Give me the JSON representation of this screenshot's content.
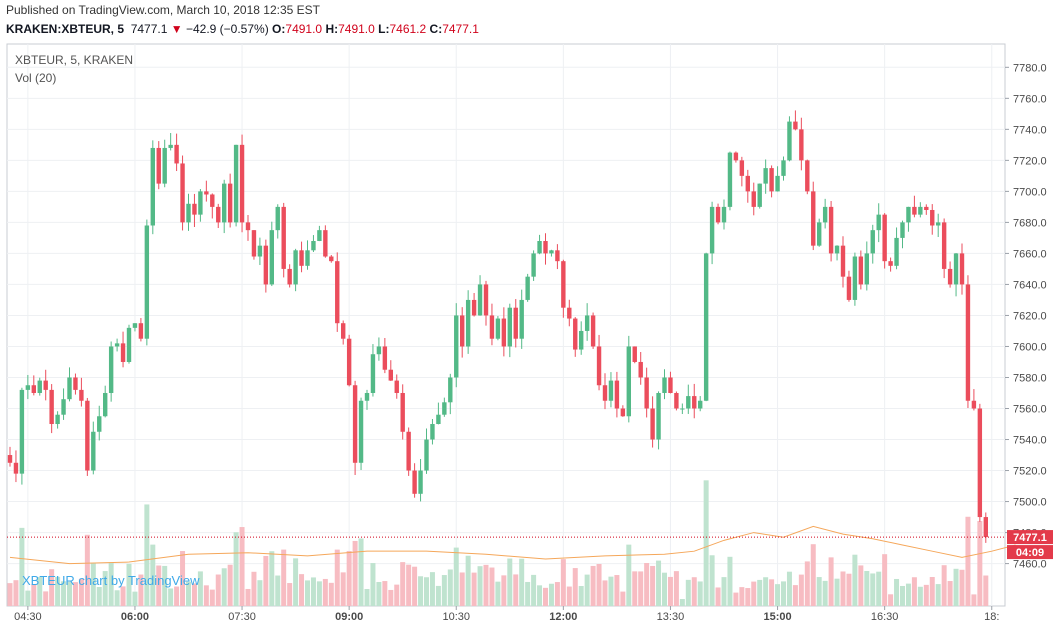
{
  "header": {
    "published": "Published on TradingView.com, March 10, 2018 12:35 EST",
    "symbol": "KRAKEN:XBTEUR, 5",
    "last": "7477.1",
    "arrow": "▼",
    "change": "−42.9 (−0.57%)",
    "o_label": "O:",
    "o": "7491.0",
    "h_label": "H:",
    "h": "7491.0",
    "l_label": "L:",
    "l": "7461.2",
    "c_label": "C:",
    "c": "7477.1"
  },
  "legend": {
    "symbol": "XBTEUR, 5, KRAKEN",
    "volume": "Vol (20)"
  },
  "watermark": "XBTEUR chart by TradingView",
  "colors": {
    "up": "#53b987",
    "down": "#eb4d5c",
    "volUp": "#bfe3cf",
    "volDown": "#f7bcc2",
    "ma": "#f5a75a",
    "grid": "#eef0f3"
  },
  "chart_data": {
    "type": "candlestick",
    "interval": "5",
    "xlabels": [
      "04:30",
      "06:00",
      "07:30",
      "09:00",
      "10:30",
      "12:00",
      "13:30",
      "15:00",
      "16:30",
      "18:"
    ],
    "xlabel_index": [
      3,
      21,
      39,
      57,
      75,
      93,
      111,
      129,
      147,
      165
    ],
    "bold_xlabels": [
      "06:00",
      "09:00",
      "12:00",
      "15:00"
    ],
    "yticks": [
      7460,
      7480,
      7500,
      7520,
      7540,
      7560,
      7580,
      7600,
      7620,
      7640,
      7660,
      7680,
      7700,
      7720,
      7740,
      7760,
      7780
    ],
    "ylim": [
      7452,
      7786
    ],
    "last_price_label": "7477.1",
    "countdown_label": "04:09",
    "last_price": 7477.1,
    "closes": [
      7525,
      7518,
      7572,
      7575,
      7570,
      7578,
      7572,
      7550,
      7556,
      7566,
      7580,
      7572,
      7565,
      7520,
      7545,
      7555,
      7570,
      7600,
      7602,
      7590,
      7612,
      7615,
      7605,
      7678,
      7728,
      7705,
      7728,
      7730,
      7718,
      7680,
      7692,
      7685,
      7700,
      7698,
      7690,
      7680,
      7705,
      7680,
      7730,
      7680,
      7675,
      7658,
      7665,
      7640,
      7675,
      7690,
      7650,
      7640,
      7662,
      7652,
      7662,
      7668,
      7675,
      7658,
      7655,
      7615,
      7605,
      7575,
      7525,
      7565,
      7570,
      7595,
      7600,
      7585,
      7578,
      7570,
      7545,
      7520,
      7505,
      7520,
      7540,
      7550,
      7556,
      7564,
      7580,
      7620,
      7600,
      7630,
      7620,
      7640,
      7620,
      7605,
      7618,
      7600,
      7625,
      7605,
      7630,
      7645,
      7660,
      7668,
      7660,
      7662,
      7655,
      7625,
      7618,
      7598,
      7610,
      7620,
      7600,
      7575,
      7565,
      7578,
      7560,
      7555,
      7600,
      7590,
      7580,
      7560,
      7540,
      7570,
      7580,
      7570,
      7560,
      7560,
      7568,
      7560,
      7565,
      7660,
      7690,
      7680,
      7690,
      7725,
      7720,
      7710,
      7700,
      7690,
      7705,
      7715,
      7700,
      7710,
      7720,
      7745,
      7740,
      7720,
      7700,
      7665,
      7680,
      7690,
      7660,
      7665,
      7645,
      7630,
      7658,
      7640,
      7660,
      7675,
      7685,
      7655,
      7652,
      7670,
      7680,
      7690,
      7685,
      7690,
      7688,
      7678,
      7680,
      7650,
      7640,
      7660,
      7640,
      7565,
      7560,
      7490,
      7477.1
    ]
  },
  "ma_points": [
    [
      0,
      7464
    ],
    [
      10,
      7460
    ],
    [
      20,
      7461
    ],
    [
      30,
      7466
    ],
    [
      40,
      7467
    ],
    [
      50,
      7465
    ],
    [
      60,
      7468
    ],
    [
      70,
      7468
    ],
    [
      80,
      7466
    ],
    [
      90,
      7463
    ],
    [
      100,
      7465
    ],
    [
      110,
      7466
    ],
    [
      115,
      7468
    ],
    [
      120,
      7475
    ],
    [
      125,
      7480
    ],
    [
      130,
      7477
    ],
    [
      135,
      7484
    ],
    [
      140,
      7479
    ],
    [
      145,
      7476
    ],
    [
      150,
      7472
    ],
    [
      155,
      7468
    ],
    [
      160,
      7464
    ],
    [
      165,
      7468
    ],
    [
      169,
      7472
    ]
  ]
}
